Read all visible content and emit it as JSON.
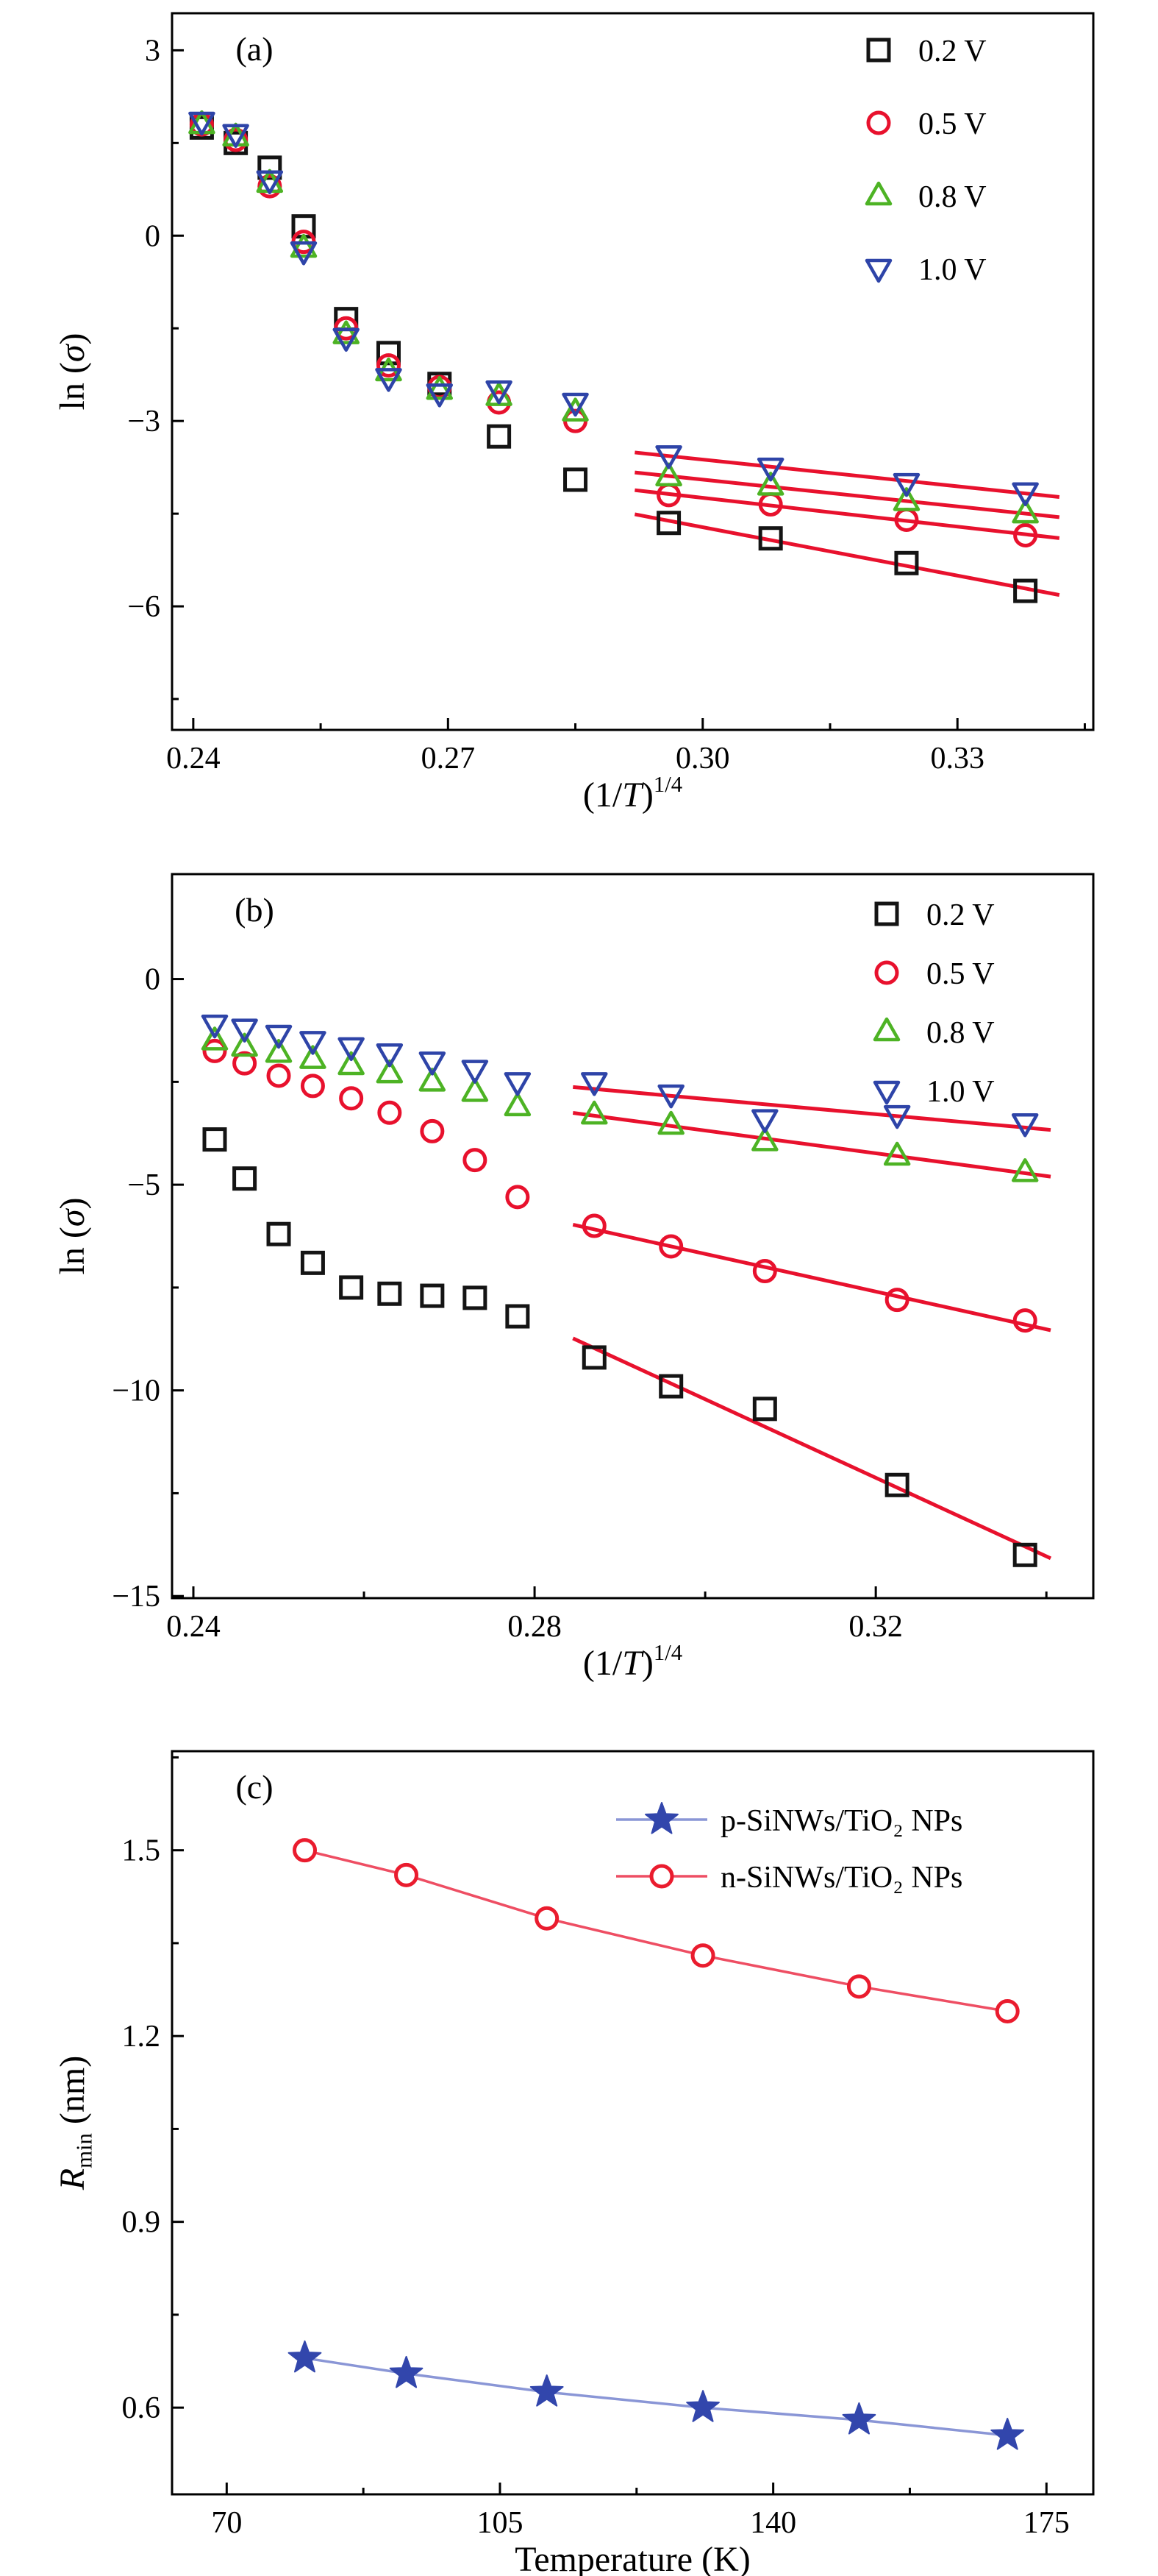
{
  "chart_data": [
    {
      "type": "scatter",
      "panel_label": "(a)",
      "xlabel": {
        "pre": "(1/",
        "italic": "T",
        "post": ")",
        "sup": "1/4"
      },
      "ylabel": {
        "pre": "ln (",
        "italic": "σ",
        "post": ")"
      },
      "xlim": [
        0.2375,
        0.346
      ],
      "ylim": [
        -8.0,
        3.6
      ],
      "xticks": [
        0.24,
        0.27,
        0.3,
        0.33
      ],
      "xtick_labels": [
        "0.24",
        "0.27",
        "0.30",
        "0.33"
      ],
      "yticks": [
        -6,
        -3,
        0,
        3
      ],
      "ytick_labels": [
        "−6",
        "−3",
        "0",
        "3"
      ],
      "grid": false,
      "legend_position": "top-right-inside",
      "fit_color": "#e8112d",
      "fit_from": 0.29,
      "fit_extend": [
        0.292,
        0.342
      ],
      "series": [
        {
          "name": "0.2 V",
          "marker": "square",
          "color": "#141414",
          "x": [
            0.241,
            0.245,
            0.249,
            0.253,
            0.258,
            0.263,
            0.269,
            0.276,
            0.285,
            0.296,
            0.308,
            0.324,
            0.338
          ],
          "y": [
            1.75,
            1.5,
            1.1,
            0.15,
            -1.35,
            -1.9,
            -2.4,
            -3.25,
            -3.95,
            -4.65,
            -4.9,
            -5.3,
            -5.75
          ]
        },
        {
          "name": "0.5 V",
          "marker": "circle",
          "color": "#e8112d",
          "x": [
            0.241,
            0.245,
            0.249,
            0.253,
            0.258,
            0.263,
            0.269,
            0.276,
            0.285,
            0.296,
            0.308,
            0.324,
            0.338
          ],
          "y": [
            1.8,
            1.55,
            0.8,
            -0.1,
            -1.5,
            -2.1,
            -2.45,
            -2.7,
            -3.0,
            -4.2,
            -4.35,
            -4.6,
            -4.85
          ]
        },
        {
          "name": "0.8 V",
          "marker": "triangle-up",
          "color": "#4db324",
          "x": [
            0.241,
            0.245,
            0.249,
            0.253,
            0.258,
            0.263,
            0.269,
            0.276,
            0.285,
            0.296,
            0.308,
            0.324,
            0.338
          ],
          "y": [
            1.8,
            1.6,
            0.85,
            -0.2,
            -1.6,
            -2.2,
            -2.5,
            -2.6,
            -2.85,
            -3.9,
            -4.05,
            -4.3,
            -4.5
          ]
        },
        {
          "name": "1.0 V",
          "marker": "triangle-down",
          "color": "#2e44a8",
          "x": [
            0.241,
            0.245,
            0.249,
            0.253,
            0.258,
            0.263,
            0.269,
            0.276,
            0.285,
            0.296,
            0.308,
            0.324,
            0.338
          ],
          "y": [
            1.85,
            1.65,
            0.9,
            -0.25,
            -1.65,
            -2.3,
            -2.55,
            -2.5,
            -2.7,
            -3.55,
            -3.75,
            -4.0,
            -4.15
          ]
        }
      ]
    },
    {
      "type": "scatter",
      "panel_label": "(b)",
      "xlabel": {
        "pre": "(1/",
        "italic": "T",
        "post": ")",
        "sup": "1/4"
      },
      "ylabel": {
        "pre": "ln (",
        "italic": "σ",
        "post": ")"
      },
      "xlim": [
        0.2375,
        0.3455
      ],
      "ylim": [
        -15.05,
        2.55
      ],
      "xticks": [
        0.24,
        0.28,
        0.32
      ],
      "xtick_labels": [
        "0.24",
        "0.28",
        "0.32"
      ],
      "yticks": [
        -15,
        -10,
        -5,
        0
      ],
      "ytick_labels": [
        "−15",
        "−10",
        "−5",
        "0"
      ],
      "grid": false,
      "legend_position": "top-right-inside",
      "fit_color": "#e8112d",
      "fit_from": 0.284,
      "fit_extend": [
        0.2845,
        0.3405
      ],
      "series": [
        {
          "name": "0.2 V",
          "marker": "square",
          "color": "#141414",
          "x": [
            0.2425,
            0.246,
            0.25,
            0.254,
            0.2585,
            0.263,
            0.268,
            0.273,
            0.278,
            0.287,
            0.296,
            0.307,
            0.3225,
            0.3375
          ],
          "y": [
            -3.9,
            -4.85,
            -6.2,
            -6.9,
            -7.5,
            -7.65,
            -7.7,
            -7.75,
            -8.2,
            -9.2,
            -9.9,
            -10.45,
            -12.3,
            -14.0
          ]
        },
        {
          "name": "0.5 V",
          "marker": "circle",
          "color": "#e8112d",
          "x": [
            0.2425,
            0.246,
            0.25,
            0.254,
            0.2585,
            0.263,
            0.268,
            0.273,
            0.278,
            0.287,
            0.296,
            0.307,
            0.3225,
            0.3375
          ],
          "y": [
            -1.75,
            -2.05,
            -2.35,
            -2.6,
            -2.9,
            -3.25,
            -3.7,
            -4.4,
            -5.3,
            -6.0,
            -6.5,
            -7.1,
            -7.8,
            -8.3
          ]
        },
        {
          "name": "0.8 V",
          "marker": "triangle-up",
          "color": "#4db324",
          "x": [
            0.2425,
            0.246,
            0.25,
            0.254,
            0.2585,
            0.263,
            0.268,
            0.273,
            0.278,
            0.287,
            0.296,
            0.307,
            0.3225,
            0.3375
          ],
          "y": [
            -1.5,
            -1.65,
            -1.8,
            -1.95,
            -2.1,
            -2.3,
            -2.5,
            -2.75,
            -3.1,
            -3.3,
            -3.55,
            -3.95,
            -4.3,
            -4.7
          ]
        },
        {
          "name": "1.0 V",
          "marker": "triangle-down",
          "color": "#2e44a8",
          "x": [
            0.2425,
            0.246,
            0.25,
            0.254,
            0.2585,
            0.263,
            0.268,
            0.273,
            0.278,
            0.287,
            0.296,
            0.307,
            0.3225,
            0.3375
          ],
          "y": [
            -1.1,
            -1.2,
            -1.35,
            -1.5,
            -1.65,
            -1.8,
            -2.0,
            -2.2,
            -2.5,
            -2.5,
            -2.8,
            -3.4,
            -3.3,
            -3.5
          ]
        }
      ]
    },
    {
      "type": "scatter-line",
      "panel_label": "(c)",
      "xlabel": {
        "pre": "Temperature (K)"
      },
      "ylabel": {
        "italic": "R",
        "sub": "min",
        "post": " (nm)"
      },
      "xlim": [
        63,
        181
      ],
      "ylim": [
        0.46,
        1.66
      ],
      "xticks": [
        70,
        105,
        140,
        175
      ],
      "xtick_labels": [
        "70",
        "105",
        "140",
        "175"
      ],
      "yticks": [
        0.6,
        0.9,
        1.2,
        1.5
      ],
      "ytick_labels": [
        "0.6",
        "0.9",
        "1.2",
        "1.5"
      ],
      "grid": false,
      "legend_position": "top-center-inside",
      "series": [
        {
          "name": "p-SiNWs/TiO₂ NPs",
          "marker": "star",
          "color": "#3246ac",
          "line_color": "#8a96d6",
          "x": [
            80,
            93,
            111,
            131,
            151,
            170
          ],
          "y": [
            0.68,
            0.655,
            0.625,
            0.6,
            0.58,
            0.555
          ]
        },
        {
          "name": "n-SiNWs/TiO₂ NPs",
          "marker": "circle",
          "color": "#ea1c2e",
          "fill": "#ffffff",
          "line_color": "#ee4e63",
          "x": [
            80,
            93,
            111,
            131,
            151,
            170
          ],
          "y": [
            1.5,
            1.46,
            1.39,
            1.33,
            1.28,
            1.24
          ]
        }
      ]
    }
  ]
}
